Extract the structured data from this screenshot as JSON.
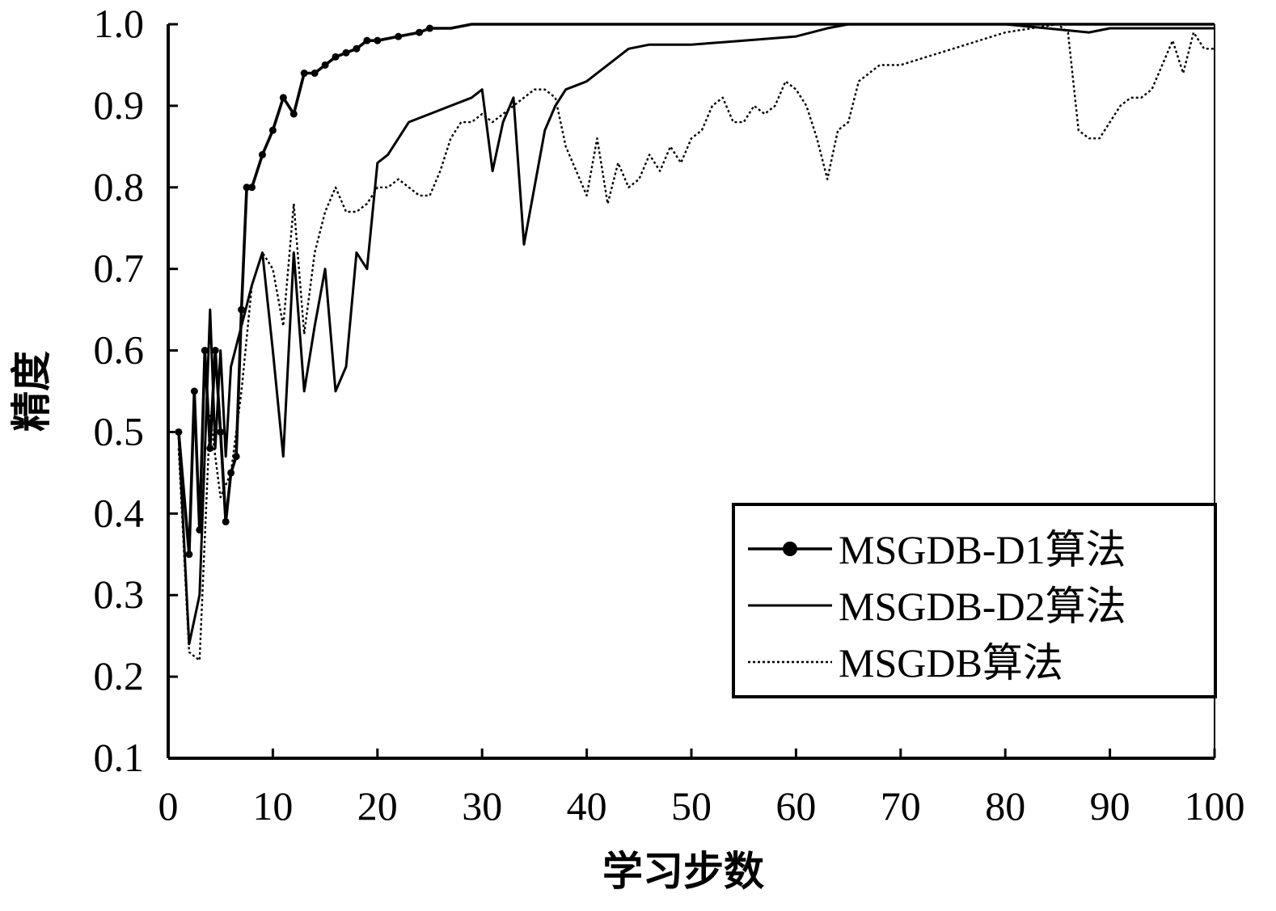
{
  "chart_data": {
    "type": "line",
    "title": "",
    "xlabel": "学习步数",
    "ylabel": "精度",
    "xlim": [
      0,
      100
    ],
    "ylim": [
      0.1,
      1.0
    ],
    "xticks": [
      "0",
      "10",
      "20",
      "30",
      "40",
      "50",
      "60",
      "70",
      "80",
      "90",
      "100"
    ],
    "yticks": [
      "0.1",
      "0.2",
      "0.3",
      "0.4",
      "0.5",
      "0.6",
      "0.7",
      "0.8",
      "0.9",
      "1.0"
    ],
    "grid": false,
    "legend_position": "bottom-right",
    "series": [
      {
        "name": "MSGDB-D1算法",
        "style": "solid-marker",
        "color": "#000000",
        "x": [
          1,
          2,
          2.5,
          3,
          3.5,
          4,
          4.5,
          5,
          5.5,
          6,
          6.5,
          7,
          7.5,
          8,
          9,
          10,
          11,
          12,
          13,
          14,
          15,
          16,
          17,
          18,
          19,
          20,
          22,
          24,
          25,
          27,
          29,
          30,
          40,
          50,
          60,
          70,
          80,
          90,
          100
        ],
        "y": [
          0.5,
          0.35,
          0.55,
          0.38,
          0.6,
          0.48,
          0.6,
          0.5,
          0.39,
          0.45,
          0.47,
          0.65,
          0.8,
          0.8,
          0.84,
          0.87,
          0.91,
          0.89,
          0.94,
          0.94,
          0.95,
          0.96,
          0.965,
          0.97,
          0.98,
          0.98,
          0.985,
          0.99,
          0.995,
          0.995,
          1.0,
          1.0,
          1.0,
          1.0,
          1.0,
          1.0,
          1.0,
          1.0,
          1.0
        ]
      },
      {
        "name": "MSGDB-D2算法",
        "style": "solid",
        "color": "#000000",
        "x": [
          1,
          2,
          3,
          4,
          4.5,
          5,
          5.5,
          6,
          7,
          8,
          9,
          10,
          11,
          12,
          13,
          14,
          15,
          16,
          17,
          18,
          19,
          20,
          21,
          22,
          23,
          24,
          25,
          27,
          29,
          30,
          31,
          32,
          33,
          34,
          35,
          36,
          37,
          38,
          39,
          40,
          41,
          42,
          44,
          46,
          50,
          55,
          60,
          63,
          65,
          70,
          80,
          88,
          90,
          100
        ],
        "y": [
          0.5,
          0.24,
          0.3,
          0.65,
          0.48,
          0.6,
          0.47,
          0.58,
          0.63,
          0.68,
          0.72,
          0.6,
          0.47,
          0.72,
          0.55,
          0.63,
          0.7,
          0.55,
          0.58,
          0.72,
          0.7,
          0.83,
          0.84,
          0.86,
          0.88,
          0.885,
          0.89,
          0.9,
          0.91,
          0.92,
          0.82,
          0.88,
          0.91,
          0.73,
          0.8,
          0.87,
          0.9,
          0.92,
          0.925,
          0.93,
          0.94,
          0.95,
          0.97,
          0.975,
          0.975,
          0.98,
          0.985,
          0.995,
          1.0,
          1.0,
          1.0,
          0.99,
          0.995,
          0.995
        ]
      },
      {
        "name": "MSGDB算法",
        "style": "dotted",
        "color": "#000000",
        "x": [
          1,
          2,
          3,
          4,
          5,
          6,
          7,
          8,
          9,
          10,
          11,
          12,
          13,
          14,
          15,
          16,
          17,
          18,
          19,
          20,
          21,
          22,
          23,
          24,
          25,
          26,
          27,
          28,
          29,
          30,
          31,
          32,
          33,
          34,
          35,
          36,
          37,
          38,
          39,
          40,
          41,
          42,
          43,
          44,
          45,
          46,
          47,
          48,
          49,
          50,
          51,
          52,
          53,
          54,
          55,
          56,
          57,
          58,
          59,
          60,
          61,
          62,
          63,
          64,
          65,
          66,
          67,
          68,
          70,
          75,
          80,
          85,
          86,
          87,
          88,
          89,
          90,
          91,
          92,
          93,
          94,
          95,
          96,
          97,
          98,
          99,
          100
        ],
        "y": [
          0.48,
          0.23,
          0.22,
          0.52,
          0.42,
          0.45,
          0.55,
          0.68,
          0.72,
          0.7,
          0.63,
          0.78,
          0.62,
          0.72,
          0.77,
          0.8,
          0.77,
          0.77,
          0.78,
          0.8,
          0.8,
          0.81,
          0.8,
          0.79,
          0.79,
          0.82,
          0.86,
          0.88,
          0.88,
          0.89,
          0.88,
          0.89,
          0.9,
          0.91,
          0.92,
          0.92,
          0.91,
          0.85,
          0.82,
          0.79,
          0.86,
          0.78,
          0.83,
          0.8,
          0.81,
          0.84,
          0.82,
          0.85,
          0.83,
          0.86,
          0.87,
          0.9,
          0.91,
          0.88,
          0.88,
          0.9,
          0.89,
          0.9,
          0.93,
          0.92,
          0.9,
          0.86,
          0.81,
          0.87,
          0.88,
          0.93,
          0.94,
          0.95,
          0.95,
          0.97,
          0.99,
          1.0,
          0.99,
          0.87,
          0.86,
          0.86,
          0.88,
          0.9,
          0.91,
          0.91,
          0.92,
          0.95,
          0.98,
          0.94,
          0.99,
          0.97,
          0.97
        ]
      }
    ]
  }
}
